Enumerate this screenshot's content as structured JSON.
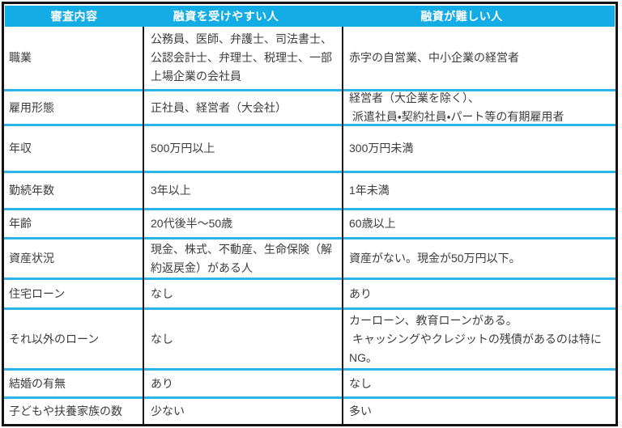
{
  "colors": {
    "header_bg": "#14ACE4",
    "row_separator": "#2BB6E7",
    "outer_border": "#131313",
    "column_line": "#1A1A1A",
    "body_text": "#3C3C3C",
    "header_text": "#FFFFFF",
    "background": "#FFFFFF"
  },
  "table": {
    "headers": {
      "criteria": "審査内容",
      "easy": "融資を受けやすい人",
      "hard": "融資が難しい人"
    },
    "rows": [
      {
        "label": "職業",
        "easy": "公務員、医師、弁護士、司法書士、\n公認会計士、弁理士、税理士、一部\n上場企業の会社員",
        "hard": "赤字の自営業、中小企業の経営者"
      },
      {
        "label": "雇用形態",
        "easy": "正社員、経営者（大会社）",
        "hard": "経営者（大企業を除く）、\n 派遣社員・契約社員・パート等の有期雇用者"
      },
      {
        "label": "年収",
        "easy": "500万円以上",
        "hard": "300万円未満"
      },
      {
        "label": "勤続年数",
        "easy": "3年以上",
        "hard": "1年未満"
      },
      {
        "label": "年齢",
        "easy": "20代後半～50歳",
        "hard": "60歳以上"
      },
      {
        "label": "資産状況",
        "easy": "現金、株式、不動産、生命保険（解\n約返戻金）がある人",
        "hard": "資産がない。現金が50万円以下。"
      },
      {
        "label": "住宅ローン",
        "easy": "なし",
        "hard": "あり"
      },
      {
        "label": "それ以外のローン",
        "easy": "なし",
        "hard": "カーローン、教育ローンがある。\n キャッシングやクレジットの残債があるのは特に\nNG。"
      },
      {
        "label": "結婚の有無",
        "easy": "あり",
        "hard": "なし"
      },
      {
        "label": "子どもや扶養家族の数",
        "easy": "少ない",
        "hard": "多い"
      }
    ]
  }
}
